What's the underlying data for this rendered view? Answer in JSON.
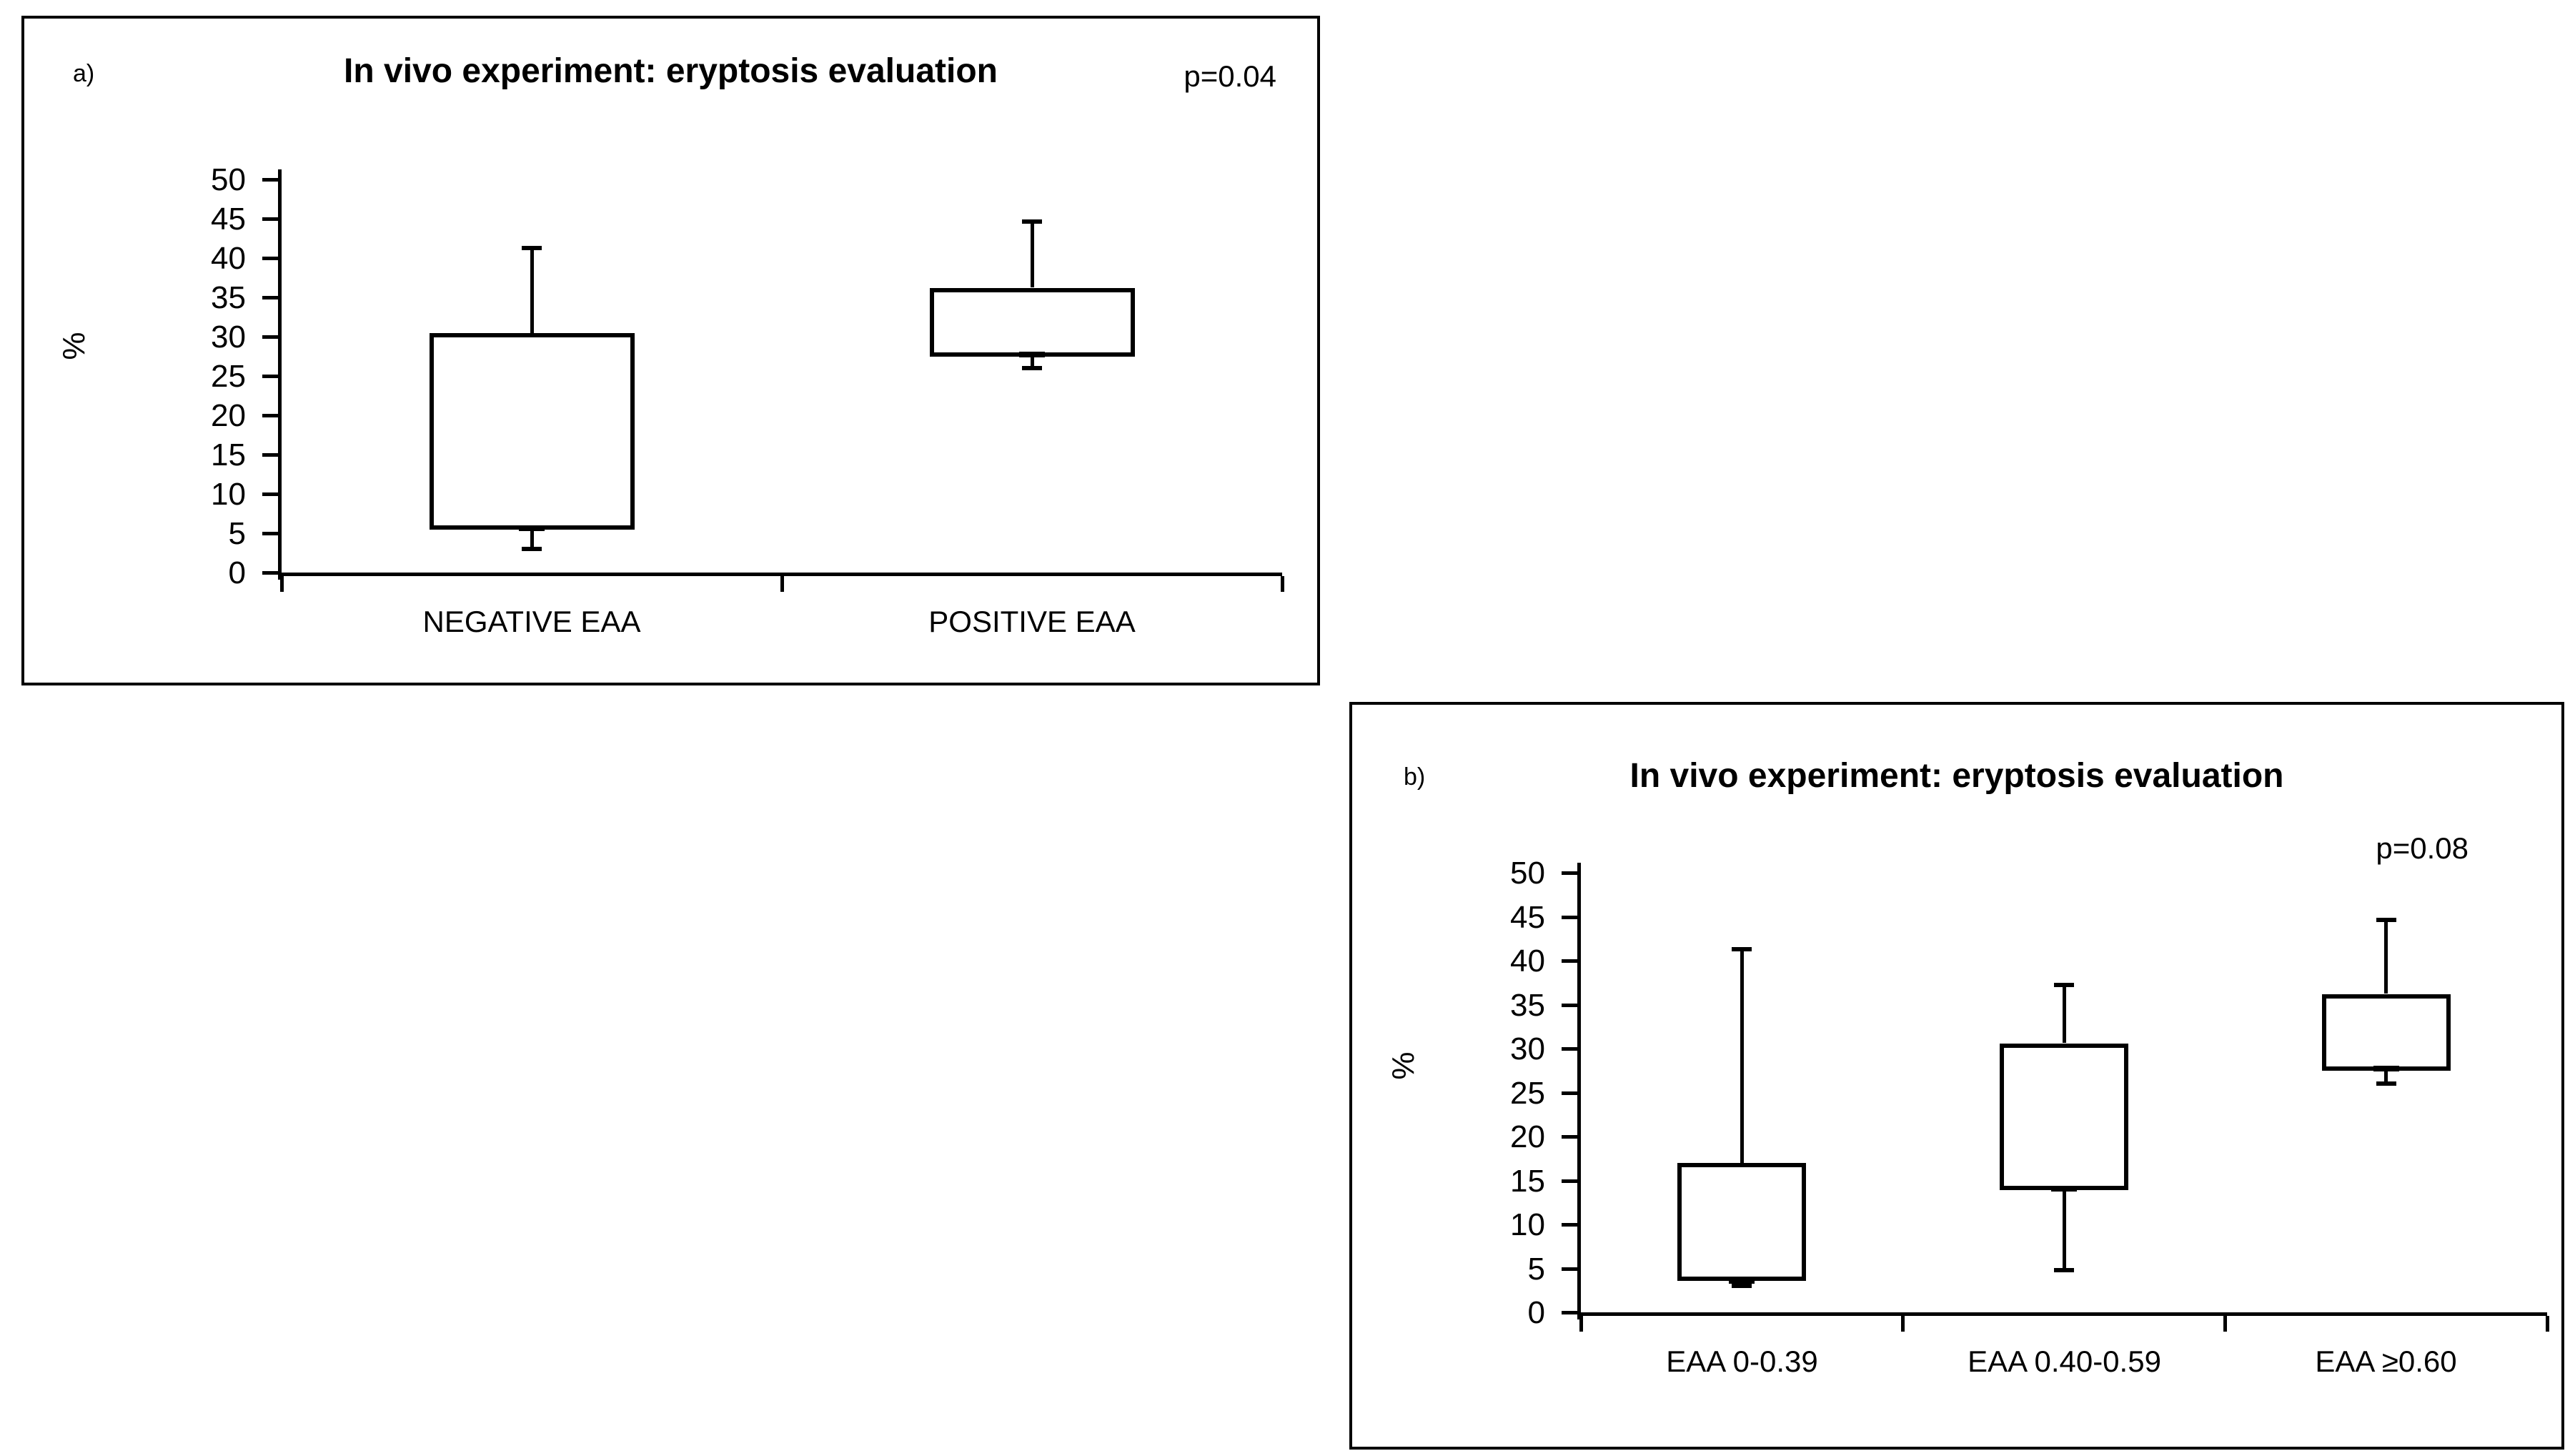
{
  "figure": {
    "background": "#ffffff",
    "line_color": "#000000"
  },
  "chart_data": [
    {
      "type": "box",
      "panel_label": "a)",
      "title": "In vivo experiment: eryptosis evaluation",
      "p_value": "p=0.04",
      "xlabel": "",
      "ylabel": "%",
      "ylim": [
        0,
        50
      ],
      "yticks": [
        0,
        5,
        10,
        15,
        20,
        25,
        30,
        35,
        40,
        45,
        50
      ],
      "grid": false,
      "legend": false,
      "categories": [
        "NEGATIVE EAA",
        "POSITIVE EAA"
      ],
      "series": [
        {
          "name": "NEGATIVE EAA",
          "whisker_low": 3.0,
          "q1": 5.5,
          "median": 5.6,
          "q3": 30.5,
          "whisker_high": 41.3
        },
        {
          "name": "POSITIVE EAA",
          "whisker_low": 26.0,
          "q1": 27.5,
          "median": 27.7,
          "q3": 36.2,
          "whisker_high": 44.6
        }
      ]
    },
    {
      "type": "box",
      "panel_label": "b)",
      "title": "In vivo experiment: eryptosis evaluation",
      "p_value": "p=0.08",
      "xlabel": "",
      "ylabel": "%",
      "ylim": [
        0,
        50
      ],
      "yticks": [
        0,
        5,
        10,
        15,
        20,
        25,
        30,
        35,
        40,
        45,
        50
      ],
      "grid": false,
      "legend": false,
      "categories": [
        "EAA 0-0.39",
        "EAA 0.40-0.59",
        "EAA ≥0.60"
      ],
      "series": [
        {
          "name": "EAA 0-0.39",
          "whisker_low": 3.0,
          "q1": 3.6,
          "median": 3.6,
          "q3": 17.0,
          "whisker_high": 41.3
        },
        {
          "name": "EAA 0.40-0.59",
          "whisker_low": 4.8,
          "q1": 13.9,
          "median": 14.1,
          "q3": 30.6,
          "whisker_high": 37.2
        },
        {
          "name": "EAA ≥0.60",
          "whisker_low": 26.0,
          "q1": 27.5,
          "median": 27.7,
          "q3": 36.2,
          "whisker_high": 44.6
        }
      ]
    }
  ]
}
